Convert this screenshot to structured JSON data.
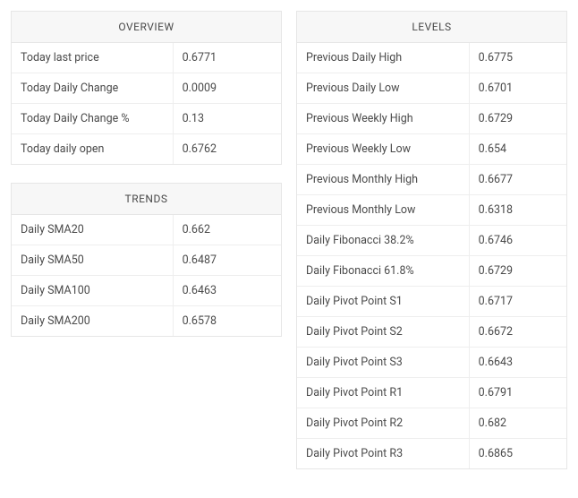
{
  "overview": {
    "title": "OVERVIEW",
    "rows": [
      {
        "label": "Today last price",
        "value": "0.6771"
      },
      {
        "label": "Today Daily Change",
        "value": "0.0009"
      },
      {
        "label": "Today Daily Change %",
        "value": "0.13"
      },
      {
        "label": "Today daily open",
        "value": "0.6762"
      }
    ]
  },
  "trends": {
    "title": "TRENDS",
    "rows": [
      {
        "label": "Daily SMA20",
        "value": "0.662"
      },
      {
        "label": "Daily SMA50",
        "value": "0.6487"
      },
      {
        "label": "Daily SMA100",
        "value": "0.6463"
      },
      {
        "label": "Daily SMA200",
        "value": "0.6578"
      }
    ]
  },
  "levels": {
    "title": "LEVELS",
    "rows": [
      {
        "label": "Previous Daily High",
        "value": "0.6775"
      },
      {
        "label": "Previous Daily Low",
        "value": "0.6701"
      },
      {
        "label": "Previous Weekly High",
        "value": "0.6729"
      },
      {
        "label": "Previous Weekly Low",
        "value": "0.654"
      },
      {
        "label": "Previous Monthly High",
        "value": "0.6677"
      },
      {
        "label": "Previous Monthly Low",
        "value": "0.6318"
      },
      {
        "label": "Daily Fibonacci 38.2%",
        "value": "0.6746"
      },
      {
        "label": "Daily Fibonacci 61.8%",
        "value": "0.6729"
      },
      {
        "label": "Daily Pivot Point S1",
        "value": "0.6717"
      },
      {
        "label": "Daily Pivot Point S2",
        "value": "0.6672"
      },
      {
        "label": "Daily Pivot Point S3",
        "value": "0.6643"
      },
      {
        "label": "Daily Pivot Point R1",
        "value": "0.6791"
      },
      {
        "label": "Daily Pivot Point R2",
        "value": "0.682"
      },
      {
        "label": "Daily Pivot Point R3",
        "value": "0.6865"
      }
    ]
  },
  "style": {
    "border_color": "#e6e6e6",
    "row_border_color": "#eeeeee",
    "header_bg": "#f7f7f7",
    "text_color": "#4a4a4a",
    "background": "#ffffff",
    "font_size_label": 12.5,
    "font_size_header": 12
  }
}
